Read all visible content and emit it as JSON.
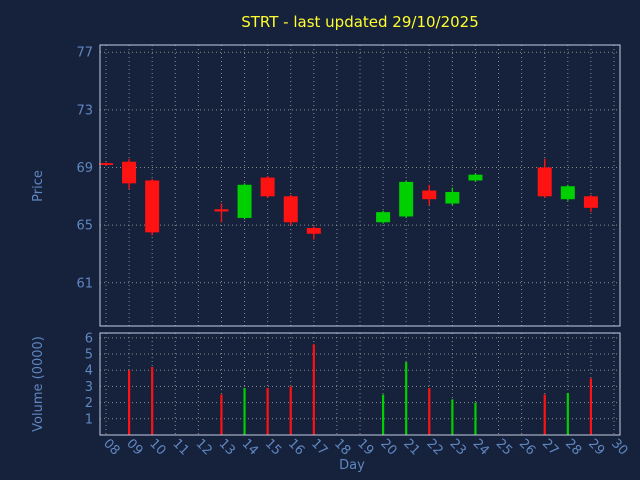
{
  "title": "STRT - last updated 29/10/2025",
  "colors": {
    "background": "#16213c",
    "grid": "#8c8c8c",
    "panel_border": "#c4cfe4",
    "axis_text": "#5f87c0",
    "title": "#ffff2e",
    "up": "#00d000",
    "down": "#ff1212"
  },
  "price_axis": {
    "label": "Price",
    "ticks": [
      77,
      73,
      69,
      65,
      61
    ],
    "range": [
      58,
      77.5
    ]
  },
  "volume_axis": {
    "label": "Volume (0000)",
    "ticks": [
      6,
      5,
      4,
      3,
      2,
      1
    ],
    "range": [
      0,
      6.3
    ]
  },
  "x_axis": {
    "label": "Day",
    "ticks": [
      "08",
      "09",
      "10",
      "11",
      "12",
      "13",
      "14",
      "15",
      "16",
      "17",
      "18",
      "19",
      "20",
      "21",
      "22",
      "23",
      "24",
      "25",
      "26",
      "27",
      "28",
      "29",
      "30"
    ]
  },
  "chart_data": {
    "type": "candlestick_with_volume",
    "title": "STRT - last updated 29/10/2025",
    "xlabel": "Day",
    "ylabel": "Price",
    "volume_label": "Volume (0000)",
    "price_range": [
      58,
      77.5
    ],
    "volume_range": [
      0,
      6.3
    ],
    "grid": true,
    "x_categories": [
      "08",
      "09",
      "10",
      "11",
      "12",
      "13",
      "14",
      "15",
      "16",
      "17",
      "18",
      "19",
      "20",
      "21",
      "22",
      "23",
      "24",
      "25",
      "26",
      "27",
      "28",
      "29",
      "30"
    ],
    "candles": [
      {
        "day": "08",
        "open": 69.3,
        "high": 69.35,
        "low": 69.15,
        "close": 69.2,
        "volume": 0
      },
      {
        "day": "09",
        "open": 69.4,
        "high": 69.6,
        "low": 67.5,
        "close": 67.9,
        "volume": 4.0
      },
      {
        "day": "10",
        "open": 68.1,
        "high": 68.2,
        "low": 64.3,
        "close": 64.5,
        "volume": 4.2
      },
      {
        "day": "13",
        "open": 66.1,
        "high": 66.5,
        "low": 65.2,
        "close": 65.95,
        "volume": 2.5
      },
      {
        "day": "14",
        "open": 65.5,
        "high": 67.9,
        "low": 65.4,
        "close": 67.8,
        "volume": 2.9
      },
      {
        "day": "15",
        "open": 68.3,
        "high": 68.4,
        "low": 66.9,
        "close": 67.0,
        "volume": 2.9
      },
      {
        "day": "16",
        "open": 67.0,
        "high": 67.1,
        "low": 65.0,
        "close": 65.2,
        "volume": 3.0
      },
      {
        "day": "17",
        "open": 64.8,
        "high": 64.9,
        "low": 64.0,
        "close": 64.4,
        "volume": 5.6
      },
      {
        "day": "20",
        "open": 65.2,
        "high": 66.0,
        "low": 65.1,
        "close": 65.9,
        "volume": 2.5
      },
      {
        "day": "21",
        "open": 65.6,
        "high": 68.1,
        "low": 65.5,
        "close": 68.0,
        "volume": 4.5
      },
      {
        "day": "22",
        "open": 67.4,
        "high": 67.8,
        "low": 66.4,
        "close": 66.8,
        "volume": 2.9
      },
      {
        "day": "23",
        "open": 66.5,
        "high": 67.6,
        "low": 66.4,
        "close": 67.3,
        "volume": 2.2
      },
      {
        "day": "24",
        "open": 68.1,
        "high": 68.6,
        "low": 68.0,
        "close": 68.5,
        "volume": 2.0
      },
      {
        "day": "27",
        "open": 69.0,
        "high": 69.6,
        "low": 66.9,
        "close": 67.0,
        "volume": 2.5
      },
      {
        "day": "28",
        "open": 66.8,
        "high": 67.8,
        "low": 66.7,
        "close": 67.7,
        "volume": 2.6
      },
      {
        "day": "29",
        "open": 67.0,
        "high": 67.1,
        "low": 65.9,
        "close": 66.2,
        "volume": 3.5
      }
    ]
  }
}
